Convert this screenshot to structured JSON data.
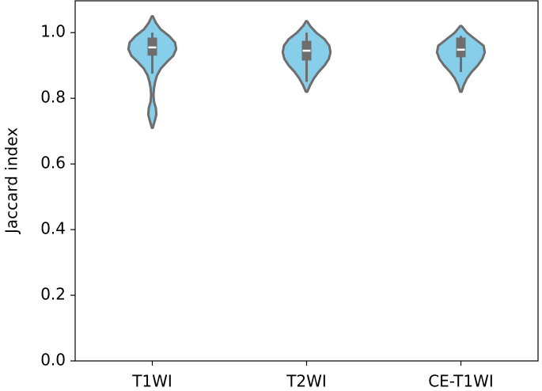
{
  "chart_data": {
    "type": "violin",
    "y_label": "Jaccard index",
    "categories": [
      "T1WI",
      "T2WI",
      "CE-T1WI"
    ],
    "color": "#87ceeb",
    "edge_color": "#6e6e6e",
    "ylim": [
      0,
      1.097
    ],
    "yticks": [
      {
        "value": 0,
        "label": "0.0"
      },
      0.2,
      0.4,
      0.6,
      0.8,
      {
        "value": 1,
        "label": "1.0"
      }
    ],
    "grid": false,
    "violins": [
      {
        "q1": 0.93,
        "median": 0.955,
        "q3": 0.985,
        "whisker_low": 0.875,
        "whisker_high": 1.0,
        "density_y": [
          0.71,
          0.73,
          0.75,
          0.77,
          0.79,
          0.81,
          0.83,
          0.85,
          0.87,
          0.89,
          0.91,
          0.93,
          0.95,
          0.97,
          0.99,
          1.01,
          1.03,
          1.05
        ],
        "density_width": [
          0.02,
          0.1,
          0.17,
          0.15,
          0.07,
          0.05,
          0.07,
          0.12,
          0.2,
          0.35,
          0.6,
          0.88,
          1.0,
          0.95,
          0.7,
          0.35,
          0.15,
          0.02
        ]
      },
      {
        "q1": 0.915,
        "median": 0.945,
        "q3": 0.975,
        "whisker_low": 0.85,
        "whisker_high": 1.0,
        "density_y": [
          0.82,
          0.84,
          0.86,
          0.88,
          0.9,
          0.92,
          0.94,
          0.96,
          0.98,
          1.0,
          1.02,
          1.035
        ],
        "density_width": [
          0.03,
          0.15,
          0.3,
          0.5,
          0.75,
          0.93,
          1.0,
          0.95,
          0.75,
          0.4,
          0.15,
          0.02
        ]
      },
      {
        "q1": 0.925,
        "median": 0.948,
        "q3": 0.985,
        "whisker_low": 0.88,
        "whisker_high": 0.99,
        "density_y": [
          0.82,
          0.84,
          0.86,
          0.88,
          0.9,
          0.92,
          0.94,
          0.96,
          0.98,
          1.0,
          1.02
        ],
        "density_width": [
          0.03,
          0.12,
          0.25,
          0.45,
          0.7,
          0.9,
          1.0,
          0.95,
          0.6,
          0.25,
          0.03
        ]
      }
    ]
  }
}
